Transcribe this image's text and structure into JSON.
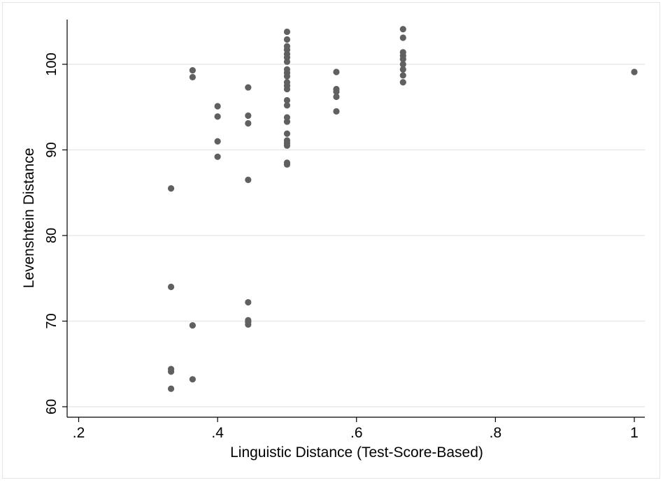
{
  "chart_data": {
    "type": "scatter",
    "title": "",
    "xlabel": "Linguistic Distance (Test-Score-Based)",
    "ylabel": "Levenshtein Distance",
    "xlim": [
      0.2,
      1.0
    ],
    "ylim": [
      60,
      105
    ],
    "xticks": [
      0.2,
      0.4,
      0.6,
      0.8,
      1.0
    ],
    "xtick_labels": [
      ".2",
      ".4",
      ".6",
      ".8",
      "1"
    ],
    "yticks": [
      60,
      70,
      80,
      90,
      100
    ],
    "ytick_labels": [
      "60",
      "70",
      "80",
      "90",
      "100"
    ],
    "grid": "horizontal",
    "legend": "none",
    "marker_color": "#606060",
    "points": [
      {
        "x": 0.333,
        "y": 85.5
      },
      {
        "x": 0.333,
        "y": 74.0
      },
      {
        "x": 0.333,
        "y": 64.4
      },
      {
        "x": 0.333,
        "y": 64.1
      },
      {
        "x": 0.333,
        "y": 62.1
      },
      {
        "x": 0.364,
        "y": 99.3
      },
      {
        "x": 0.364,
        "y": 98.5
      },
      {
        "x": 0.364,
        "y": 69.5
      },
      {
        "x": 0.364,
        "y": 63.2
      },
      {
        "x": 0.4,
        "y": 95.1
      },
      {
        "x": 0.4,
        "y": 93.9
      },
      {
        "x": 0.4,
        "y": 91.0
      },
      {
        "x": 0.4,
        "y": 89.2
      },
      {
        "x": 0.444,
        "y": 97.3
      },
      {
        "x": 0.444,
        "y": 94.0
      },
      {
        "x": 0.444,
        "y": 93.1
      },
      {
        "x": 0.444,
        "y": 86.5
      },
      {
        "x": 0.444,
        "y": 72.2
      },
      {
        "x": 0.444,
        "y": 70.1
      },
      {
        "x": 0.444,
        "y": 69.9
      },
      {
        "x": 0.444,
        "y": 69.6
      },
      {
        "x": 0.5,
        "y": 103.8
      },
      {
        "x": 0.5,
        "y": 102.9
      },
      {
        "x": 0.5,
        "y": 102.1
      },
      {
        "x": 0.5,
        "y": 101.7
      },
      {
        "x": 0.5,
        "y": 101.2
      },
      {
        "x": 0.5,
        "y": 100.8
      },
      {
        "x": 0.5,
        "y": 100.3
      },
      {
        "x": 0.5,
        "y": 99.4
      },
      {
        "x": 0.5,
        "y": 99.0
      },
      {
        "x": 0.5,
        "y": 98.6
      },
      {
        "x": 0.5,
        "y": 97.9
      },
      {
        "x": 0.5,
        "y": 97.5
      },
      {
        "x": 0.5,
        "y": 97.1
      },
      {
        "x": 0.5,
        "y": 95.8
      },
      {
        "x": 0.5,
        "y": 95.2
      },
      {
        "x": 0.5,
        "y": 93.8
      },
      {
        "x": 0.5,
        "y": 93.3
      },
      {
        "x": 0.5,
        "y": 91.9
      },
      {
        "x": 0.5,
        "y": 91.1
      },
      {
        "x": 0.5,
        "y": 90.8
      },
      {
        "x": 0.5,
        "y": 90.5
      },
      {
        "x": 0.5,
        "y": 88.5
      },
      {
        "x": 0.5,
        "y": 88.3
      },
      {
        "x": 0.571,
        "y": 99.1
      },
      {
        "x": 0.571,
        "y": 97.1
      },
      {
        "x": 0.571,
        "y": 96.8
      },
      {
        "x": 0.571,
        "y": 96.2
      },
      {
        "x": 0.571,
        "y": 94.5
      },
      {
        "x": 0.667,
        "y": 104.1
      },
      {
        "x": 0.667,
        "y": 103.1
      },
      {
        "x": 0.667,
        "y": 101.4
      },
      {
        "x": 0.667,
        "y": 101.0
      },
      {
        "x": 0.667,
        "y": 100.6
      },
      {
        "x": 0.667,
        "y": 100.0
      },
      {
        "x": 0.667,
        "y": 99.4
      },
      {
        "x": 0.667,
        "y": 98.7
      },
      {
        "x": 0.667,
        "y": 97.9
      },
      {
        "x": 1.0,
        "y": 99.1
      }
    ]
  }
}
